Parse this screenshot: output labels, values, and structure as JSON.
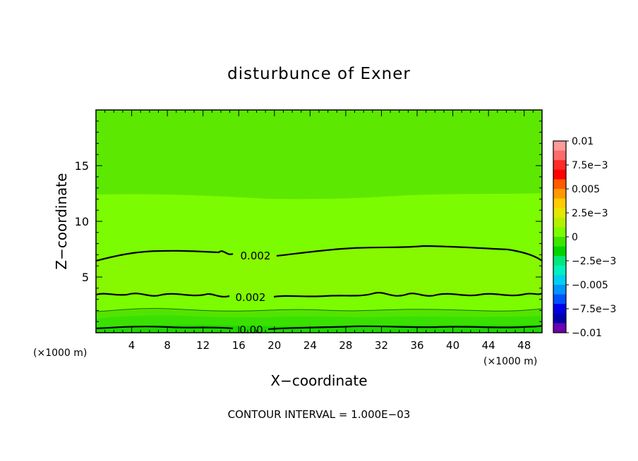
{
  "chart_data": {
    "type": "contour",
    "title": "disturbunce of Exner",
    "xlabel": "X−coordinate",
    "ylabel": "Z−coordinate",
    "x_unit": "(×1000 m)",
    "y_unit": "(×1000 m)",
    "xlim": [
      0,
      50
    ],
    "ylim": [
      0,
      20
    ],
    "x_ticks": [
      "4",
      "8",
      "12",
      "16",
      "20",
      "24",
      "28",
      "32",
      "36",
      "40",
      "44",
      "48"
    ],
    "y_ticks": [
      "5",
      "10",
      "15"
    ],
    "colorbar": {
      "labels": [
        "0.01",
        "7.5e−3",
        "0.005",
        "2.5e−3",
        "0",
        "−2.5e−3",
        "−0.005",
        "−7.5e−3",
        "−0.01"
      ],
      "colors": [
        "#ff9a9a",
        "#ff6a6a",
        "#ff2a2a",
        "#ff0000",
        "#ff5a00",
        "#ff9900",
        "#ffcc00",
        "#e6e600",
        "#b4f000",
        "#7cfc00",
        "#3ce600",
        "#00d400",
        "#00e87a",
        "#00f0c0",
        "#00d0f0",
        "#0096ff",
        "#0050ff",
        "#0000e6",
        "#0000aa",
        "#6a00b0"
      ]
    },
    "contour_labels": [
      "0.002",
      "0.002",
      "0.00"
    ],
    "footer": "CONTOUR INTERVAL = 1.000E−03"
  }
}
